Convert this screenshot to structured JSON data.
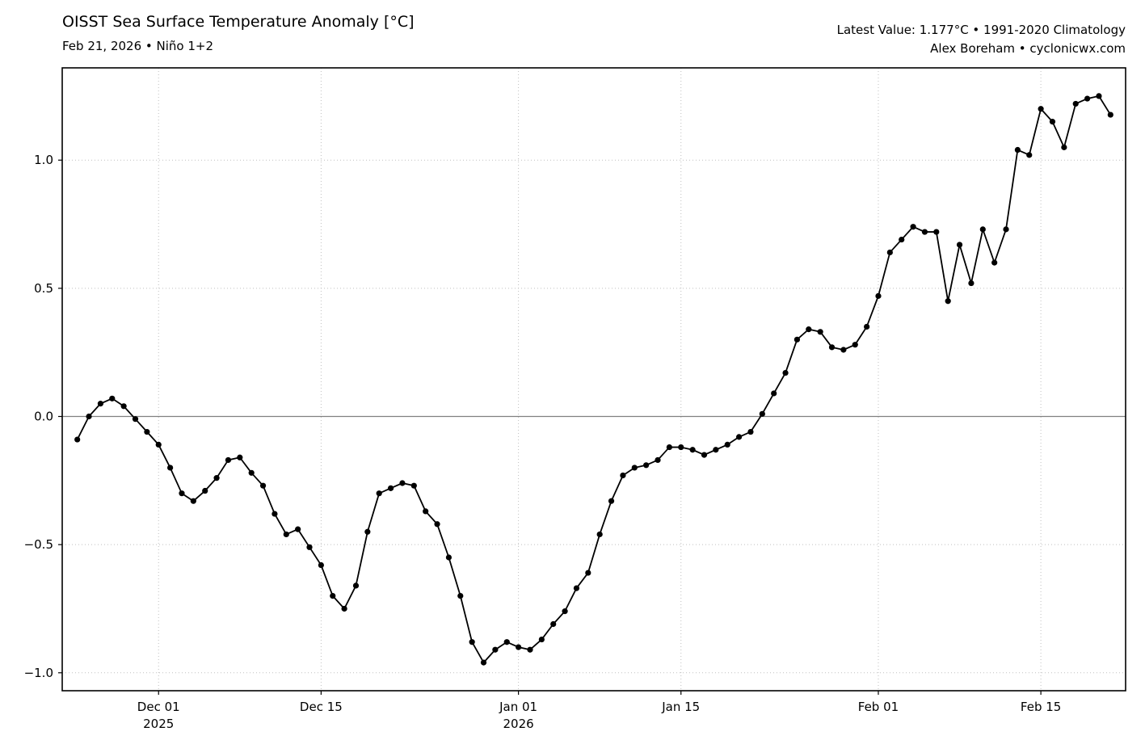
{
  "header": {
    "title": "OISST Sea Surface Temperature Anomaly [°C]",
    "subtitle": "Feb 21, 2026 • Niño 1+2",
    "annotation_line1": "Latest Value: 1.177°C • 1991-2020 Climatology",
    "annotation_line2": "Alex Boreham • cyclonicwx.com"
  },
  "chart_data": {
    "type": "line",
    "title": "OISST Sea Surface Temperature Anomaly [°C]",
    "subtitle": "Feb 21, 2026 • Niño 1+2",
    "xlabel": "",
    "ylabel": "",
    "latest_value_c": 1.177,
    "climatology": "1991-2020",
    "region": "Niño 1+2",
    "grid": true,
    "legend": "none",
    "marker": "circle",
    "ylim": [
      -1.07,
      1.36
    ],
    "y_ticks": [
      -1.0,
      -0.5,
      0.0,
      0.5,
      1.0
    ],
    "y_tick_labels": [
      "−1.0",
      "−0.5",
      "0.0",
      "0.5",
      "1.0"
    ],
    "x_ticks": [
      {
        "index": 7,
        "label": "Dec 01",
        "sublabel": "2025"
      },
      {
        "index": 21,
        "label": "Dec 15",
        "sublabel": ""
      },
      {
        "index": 38,
        "label": "Jan 01",
        "sublabel": "2026"
      },
      {
        "index": 52,
        "label": "Jan 15",
        "sublabel": ""
      },
      {
        "index": 69,
        "label": "Feb 01",
        "sublabel": ""
      },
      {
        "index": 83,
        "label": "Feb 15",
        "sublabel": ""
      }
    ],
    "style": {
      "line_color": "#000000",
      "marker_color": "#000000",
      "grid_color": "#bfbfbf",
      "zero_line_color": "#808080",
      "frame_color": "#000000",
      "background": "#ffffff"
    },
    "x": [
      "Nov 24",
      "Nov 25",
      "Nov 26",
      "Nov 27",
      "Nov 28",
      "Nov 29",
      "Nov 30",
      "Dec 01",
      "Dec 02",
      "Dec 03",
      "Dec 04",
      "Dec 05",
      "Dec 06",
      "Dec 07",
      "Dec 08",
      "Dec 09",
      "Dec 10",
      "Dec 11",
      "Dec 12",
      "Dec 13",
      "Dec 14",
      "Dec 15",
      "Dec 16",
      "Dec 17",
      "Dec 18",
      "Dec 19",
      "Dec 20",
      "Dec 21",
      "Dec 22",
      "Dec 23",
      "Dec 24",
      "Dec 25",
      "Dec 26",
      "Dec 27",
      "Dec 28",
      "Dec 29",
      "Dec 30",
      "Dec 31",
      "Jan 01",
      "Jan 02",
      "Jan 03",
      "Jan 04",
      "Jan 05",
      "Jan 06",
      "Jan 07",
      "Jan 08",
      "Jan 09",
      "Jan 10",
      "Jan 11",
      "Jan 12",
      "Jan 13",
      "Jan 14",
      "Jan 15",
      "Jan 16",
      "Jan 17",
      "Jan 18",
      "Jan 19",
      "Jan 20",
      "Jan 21",
      "Jan 22",
      "Jan 23",
      "Jan 24",
      "Jan 25",
      "Jan 26",
      "Jan 27",
      "Jan 28",
      "Jan 29",
      "Jan 30",
      "Jan 31",
      "Feb 01",
      "Feb 02",
      "Feb 03",
      "Feb 04",
      "Feb 05",
      "Feb 06",
      "Feb 07",
      "Feb 08",
      "Feb 09",
      "Feb 10",
      "Feb 11",
      "Feb 12",
      "Feb 13",
      "Feb 14",
      "Feb 15",
      "Feb 16",
      "Feb 17",
      "Feb 18",
      "Feb 19",
      "Feb 20",
      "Feb 21"
    ],
    "values": [
      -0.09,
      0.0,
      0.05,
      0.07,
      0.04,
      -0.01,
      -0.06,
      -0.11,
      -0.2,
      -0.3,
      -0.33,
      -0.29,
      -0.24,
      -0.17,
      -0.16,
      -0.22,
      -0.27,
      -0.38,
      -0.46,
      -0.44,
      -0.51,
      -0.58,
      -0.7,
      -0.75,
      -0.66,
      -0.45,
      -0.3,
      -0.28,
      -0.26,
      -0.27,
      -0.37,
      -0.42,
      -0.55,
      -0.7,
      -0.88,
      -0.96,
      -0.91,
      -0.88,
      -0.9,
      -0.91,
      -0.87,
      -0.81,
      -0.76,
      -0.67,
      -0.61,
      -0.46,
      -0.33,
      -0.23,
      -0.2,
      -0.19,
      -0.17,
      -0.12,
      -0.12,
      -0.13,
      -0.15,
      -0.13,
      -0.11,
      -0.08,
      -0.06,
      0.01,
      0.09,
      0.17,
      0.3,
      0.34,
      0.33,
      0.27,
      0.26,
      0.28,
      0.35,
      0.47,
      0.64,
      0.69,
      0.74,
      0.72,
      0.72,
      0.45,
      0.67,
      0.52,
      0.73,
      0.6,
      0.73,
      1.04,
      1.02,
      1.2,
      1.15,
      1.05,
      1.22,
      1.24,
      1.25,
      1.177
    ]
  }
}
